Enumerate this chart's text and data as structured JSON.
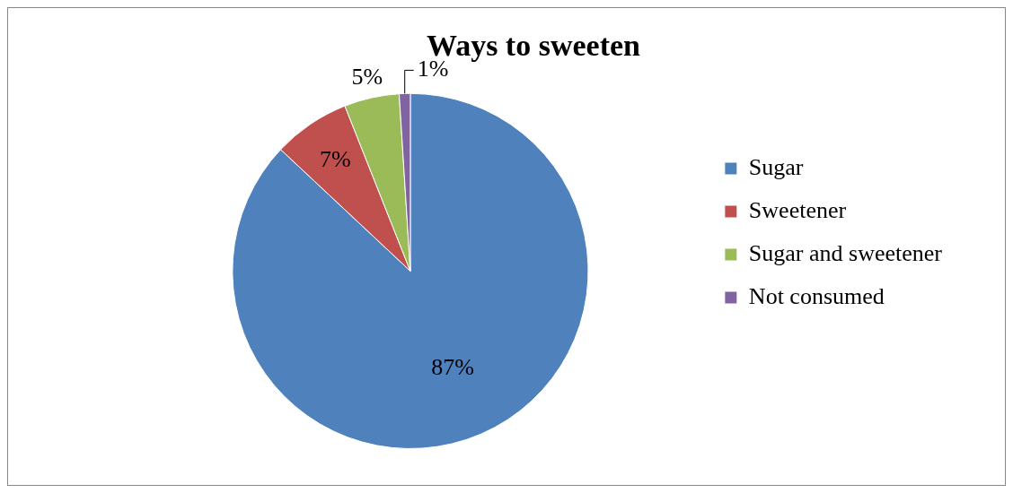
{
  "chart_data": {
    "type": "pie",
    "title": "Ways to sweeten",
    "categories": [
      "Sugar",
      "Sweetener",
      "Sugar and sweetener",
      "Not consumed"
    ],
    "values": [
      87,
      7,
      5,
      1
    ],
    "colors": [
      "#4f81bd",
      "#c0504d",
      "#9bbb59",
      "#8064a2"
    ],
    "value_labels": [
      "87%",
      "7%",
      "5%",
      "1%"
    ],
    "legend": "right"
  }
}
